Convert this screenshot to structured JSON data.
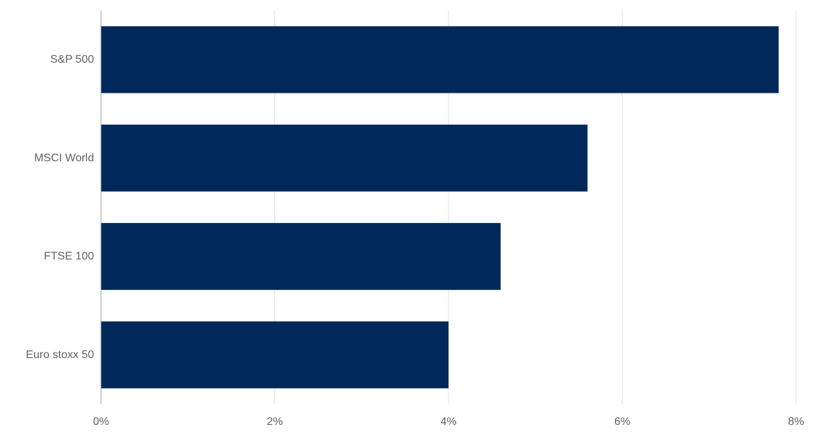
{
  "chart_data": {
    "type": "bar",
    "orientation": "horizontal",
    "categories": [
      "S&P 500",
      "MSCI World",
      "FTSE 100",
      "Euro stoxx 50"
    ],
    "values": [
      7.8,
      5.6,
      4.6,
      4.0
    ],
    "xlim": [
      0,
      8
    ],
    "xticks": [
      0,
      2,
      4,
      6,
      8
    ],
    "tick_labels": [
      "0%",
      "2%",
      "4%",
      "6%",
      "8%"
    ],
    "title": "",
    "xlabel": "",
    "ylabel": "",
    "grid": "vertical",
    "legend": "none",
    "colors": {
      "bar": "#00285a",
      "grid": "#e0e0e0",
      "axis": "#9e9e9e",
      "label": "#616161"
    }
  }
}
